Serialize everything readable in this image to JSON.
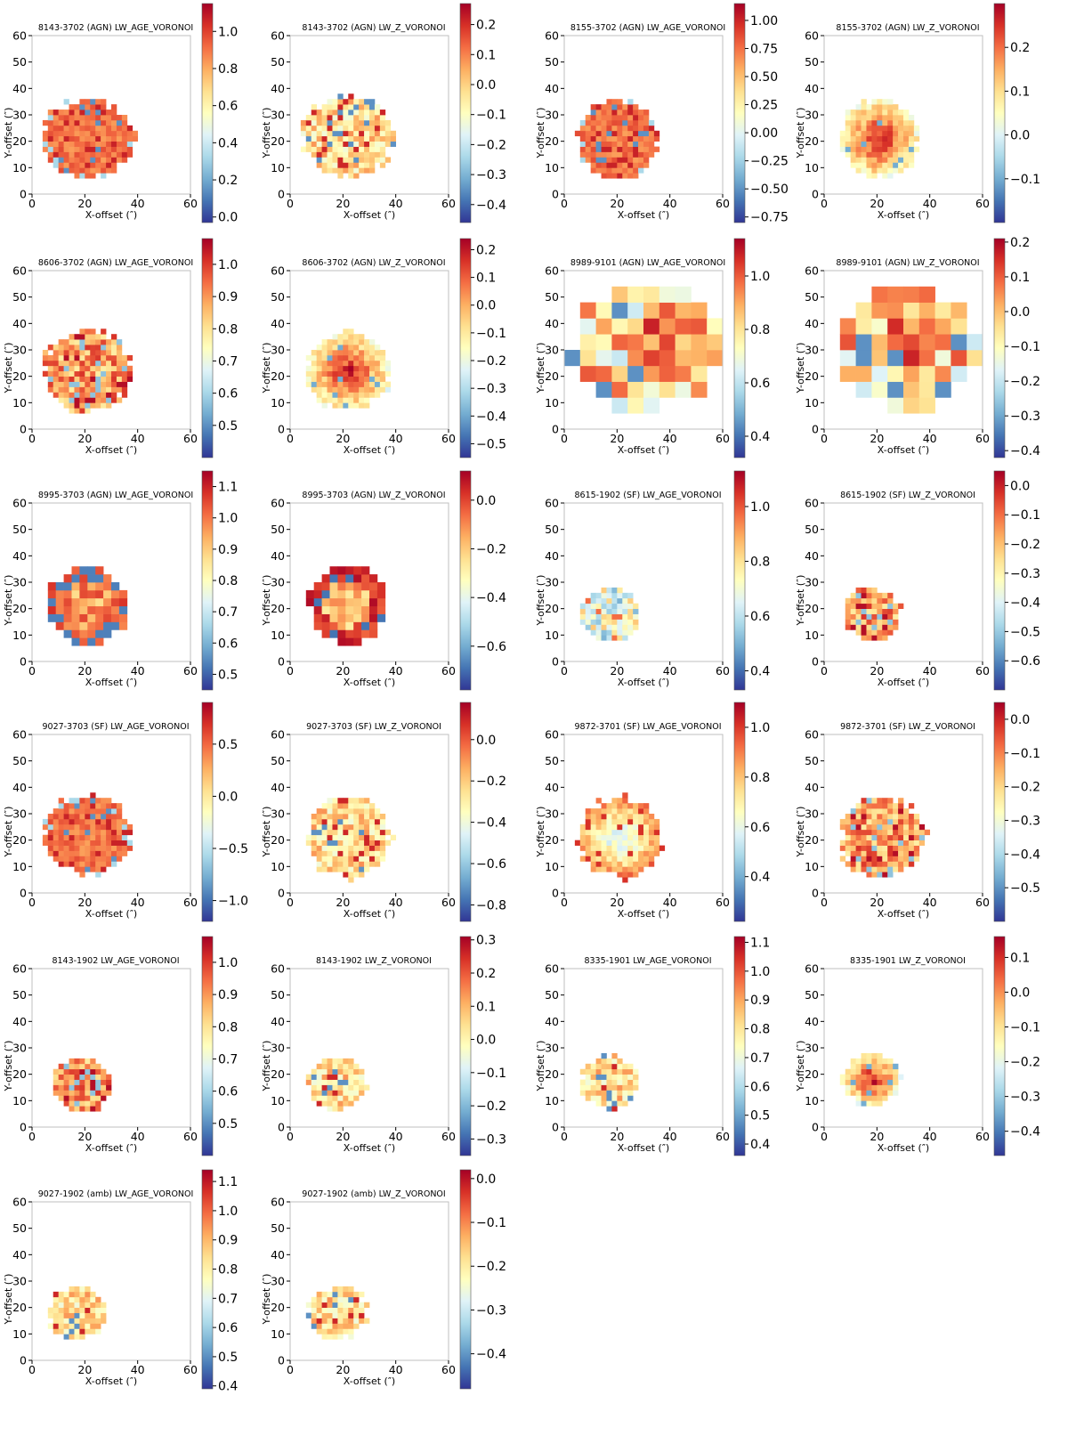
{
  "figure": {
    "colormap": [
      "#313695",
      "#4575b4",
      "#74add1",
      "#abd9e9",
      "#e0f3f8",
      "#ffffbf",
      "#fee090",
      "#fdae61",
      "#f46d43",
      "#d73027",
      "#a50026"
    ],
    "shared_axes": {
      "xlabel": "X-offset (″)",
      "ylabel": "Y-offset (″)",
      "xticks": [
        0,
        20,
        40,
        60
      ],
      "yticks": [
        0,
        10,
        20,
        30,
        40,
        50,
        60
      ],
      "xlim": [
        0,
        60
      ],
      "ylim": [
        0,
        60
      ]
    }
  },
  "chart_data": [
    {
      "type": "heatmap",
      "title": "8143-3702 (AGN) LW_AGE_VORONOI",
      "map": {
        "cx": 21,
        "cy": 21,
        "rx": 17,
        "ry": 15,
        "cell": 2,
        "rough": 0.55,
        "pattern": "agn-high"
      },
      "colorbar": {
        "vmin": -0.03,
        "vmax": 1.15,
        "ticks": [
          "0.0",
          "0.2",
          "0.4",
          "0.6",
          "0.8",
          "1.0"
        ]
      }
    },
    {
      "type": "heatmap",
      "title": "8143-3702 (AGN) LW_Z_VORONOI",
      "map": {
        "cx": 22,
        "cy": 22,
        "rx": 17,
        "ry": 15,
        "cell": 2,
        "rough": 0.45,
        "pattern": "speckle-mid"
      },
      "colorbar": {
        "vmin": -0.46,
        "vmax": 0.27,
        "ticks": [
          "0.2",
          "0.1",
          "0.0",
          "−0.1",
          "−0.2",
          "−0.3",
          "−0.4"
        ]
      }
    },
    {
      "type": "heatmap",
      "title": "8155-3702 (AGN) LW_AGE_VORONOI",
      "map": {
        "cx": 20,
        "cy": 21,
        "rx": 15,
        "ry": 15,
        "cell": 2,
        "rough": 0.45,
        "pattern": "agn-high"
      },
      "colorbar": {
        "vmin": -0.8,
        "vmax": 1.15,
        "ticks": [
          "1.00",
          "0.75",
          "0.50",
          "0.25",
          "0.00",
          "−0.25",
          "−0.50",
          "−0.75"
        ]
      }
    },
    {
      "type": "heatmap",
      "title": "8155-3702 (AGN) LW_Z_VORONOI",
      "map": {
        "cx": 21,
        "cy": 21,
        "rx": 15,
        "ry": 15,
        "cell": 2,
        "rough": 0.45,
        "pattern": "center-hot"
      },
      "colorbar": {
        "vmin": -0.2,
        "vmax": 0.3,
        "ticks": [
          "0.2",
          "0.1",
          "0.0",
          "−0.1"
        ]
      }
    },
    {
      "type": "heatmap",
      "title": "8606-3702 (AGN) LW_AGE_VORONOI",
      "map": {
        "cx": 21,
        "cy": 22,
        "rx": 17,
        "ry": 15,
        "cell": 2,
        "rough": 0.55,
        "pattern": "speckle-high"
      },
      "colorbar": {
        "vmin": 0.4,
        "vmax": 1.08,
        "ticks": [
          "1.0",
          "0.9",
          "0.8",
          "0.7",
          "0.6",
          "0.5"
        ]
      }
    },
    {
      "type": "heatmap",
      "title": "8606-3702 (AGN) LW_Z_VORONOI",
      "map": {
        "cx": 22,
        "cy": 22,
        "rx": 16,
        "ry": 15,
        "cell": 2,
        "rough": 0.45,
        "pattern": "center-hot"
      },
      "colorbar": {
        "vmin": -0.55,
        "vmax": 0.24,
        "ticks": [
          "0.2",
          "0.1",
          "0.0",
          "−0.1",
          "−0.2",
          "−0.3",
          "−0.4",
          "−0.5"
        ]
      }
    },
    {
      "type": "heatmap",
      "title": "8989-9101 (AGN) LW_AGE_VORONOI",
      "map": {
        "cx": 31,
        "cy": 31,
        "rx": 27,
        "ry": 24,
        "cell": 6,
        "rough": 0.3,
        "pattern": "voronoi-big"
      },
      "colorbar": {
        "vmin": 0.32,
        "vmax": 1.14,
        "ticks": [
          "1.0",
          "0.8",
          "0.6",
          "0.4"
        ]
      }
    },
    {
      "type": "heatmap",
      "title": "8989-9101 (AGN) LW_Z_VORONOI",
      "map": {
        "cx": 31,
        "cy": 31,
        "rx": 27,
        "ry": 24,
        "cell": 6,
        "rough": 0.3,
        "pattern": "voronoi-big"
      },
      "colorbar": {
        "vmin": -0.42,
        "vmax": 0.21,
        "ticks": [
          "0.2",
          "0.1",
          "0.0",
          "−0.1",
          "−0.2",
          "−0.3",
          "−0.4"
        ]
      }
    },
    {
      "type": "heatmap",
      "title": "8995-3703 (AGN) LW_AGE_VORONOI",
      "map": {
        "cx": 21,
        "cy": 21,
        "rx": 15,
        "ry": 15,
        "cell": 3,
        "rough": 0.25,
        "pattern": "ring-blue"
      },
      "colorbar": {
        "vmin": 0.45,
        "vmax": 1.15,
        "ticks": [
          "1.1",
          "1.0",
          "0.9",
          "0.8",
          "0.7",
          "0.6",
          "0.5"
        ]
      }
    },
    {
      "type": "heatmap",
      "title": "8995-3703 (AGN) LW_Z_VORONOI",
      "map": {
        "cx": 22,
        "cy": 22,
        "rx": 15,
        "ry": 15,
        "cell": 3,
        "rough": 0.25,
        "pattern": "ring-red"
      },
      "colorbar": {
        "vmin": -0.78,
        "vmax": 0.12,
        "ticks": [
          "0.0",
          "−0.2",
          "−0.4",
          "−0.6"
        ]
      }
    },
    {
      "type": "heatmap",
      "title": "8615-1902 (SF) LW_AGE_VORONOI",
      "map": {
        "cx": 17,
        "cy": 18,
        "rx": 11,
        "ry": 10,
        "cell": 2,
        "rough": 0.5,
        "pattern": "speckle-low"
      },
      "colorbar": {
        "vmin": 0.33,
        "vmax": 1.13,
        "ticks": [
          "1.0",
          "0.8",
          "0.6",
          "0.4"
        ]
      }
    },
    {
      "type": "heatmap",
      "title": "8615-1902 (SF) LW_Z_VORONOI",
      "map": {
        "cx": 18,
        "cy": 18,
        "rx": 11,
        "ry": 10,
        "cell": 2,
        "rough": 0.5,
        "pattern": "speckle-high"
      },
      "colorbar": {
        "vmin": -0.7,
        "vmax": 0.05,
        "ticks": [
          "0.0",
          "−0.1",
          "−0.2",
          "−0.3",
          "−0.4",
          "−0.5",
          "−0.6"
        ]
      }
    },
    {
      "type": "heatmap",
      "title": "9027-3703 (SF) LW_AGE_VORONOI",
      "map": {
        "cx": 21,
        "cy": 22,
        "rx": 16,
        "ry": 15,
        "cell": 2,
        "rough": 0.5,
        "pattern": "agn-high"
      },
      "colorbar": {
        "vmin": -1.2,
        "vmax": 0.9,
        "ticks": [
          "0.5",
          "0.0",
          "−0.5",
          "−1.0"
        ]
      }
    },
    {
      "type": "heatmap",
      "title": "9027-3703 (SF) LW_Z_VORONOI",
      "map": {
        "cx": 22,
        "cy": 21,
        "rx": 16,
        "ry": 15,
        "cell": 2,
        "rough": 0.5,
        "pattern": "speckle-mid"
      },
      "colorbar": {
        "vmin": -0.88,
        "vmax": 0.18,
        "ticks": [
          "0.0",
          "−0.2",
          "−0.4",
          "−0.6",
          "−0.8"
        ]
      }
    },
    {
      "type": "heatmap",
      "title": "9872-3701 (SF) LW_AGE_VORONOI",
      "map": {
        "cx": 21,
        "cy": 21,
        "rx": 16,
        "ry": 15,
        "cell": 2,
        "rough": 0.5,
        "pattern": "center-cool"
      },
      "colorbar": {
        "vmin": 0.22,
        "vmax": 1.1,
        "ticks": [
          "1.0",
          "0.8",
          "0.6",
          "0.4"
        ]
      }
    },
    {
      "type": "heatmap",
      "title": "9872-3701 (SF) LW_Z_VORONOI",
      "map": {
        "cx": 22,
        "cy": 21,
        "rx": 16,
        "ry": 15,
        "cell": 2,
        "rough": 0.5,
        "pattern": "speckle-high"
      },
      "colorbar": {
        "vmin": -0.6,
        "vmax": 0.05,
        "ticks": [
          "0.0",
          "−0.1",
          "−0.2",
          "−0.3",
          "−0.4",
          "−0.5"
        ]
      }
    },
    {
      "type": "heatmap",
      "title": "8143-1902 LW_AGE_VORONOI",
      "map": {
        "cx": 19,
        "cy": 16,
        "rx": 11,
        "ry": 10,
        "cell": 2,
        "rough": 0.5,
        "pattern": "speckle-high"
      },
      "colorbar": {
        "vmin": 0.4,
        "vmax": 1.08,
        "ticks": [
          "1.0",
          "0.9",
          "0.8",
          "0.7",
          "0.6",
          "0.5"
        ]
      }
    },
    {
      "type": "heatmap",
      "title": "8143-1902 LW_Z_VORONOI",
      "map": {
        "cx": 18,
        "cy": 17,
        "rx": 11,
        "ry": 10,
        "cell": 2,
        "rough": 0.5,
        "pattern": "speckle-mid"
      },
      "colorbar": {
        "vmin": -0.35,
        "vmax": 0.31,
        "ticks": [
          "0.3",
          "0.2",
          "0.1",
          "0.0",
          "−0.1",
          "−0.2",
          "−0.3"
        ]
      }
    },
    {
      "type": "heatmap",
      "title": "8335-1901 LW_AGE_VORONOI",
      "map": {
        "cx": 17,
        "cy": 17,
        "rx": 11,
        "ry": 10,
        "cell": 2,
        "rough": 0.5,
        "pattern": "speckle-mid"
      },
      "colorbar": {
        "vmin": 0.36,
        "vmax": 1.12,
        "ticks": [
          "1.1",
          "1.0",
          "0.9",
          "0.8",
          "0.7",
          "0.6",
          "0.5",
          "0.4"
        ]
      }
    },
    {
      "type": "heatmap",
      "title": "8335-1901 LW_Z_VORONOI",
      "map": {
        "cx": 18,
        "cy": 18,
        "rx": 11,
        "ry": 10,
        "cell": 2,
        "rough": 0.5,
        "pattern": "center-hot"
      },
      "colorbar": {
        "vmin": -0.47,
        "vmax": 0.16,
        "ticks": [
          "0.1",
          "0.0",
          "−0.1",
          "−0.2",
          "−0.3",
          "−0.4"
        ]
      }
    },
    {
      "type": "heatmap",
      "title": "9027-1902 (amb) LW_AGE_VORONOI",
      "map": {
        "cx": 17,
        "cy": 18,
        "rx": 11,
        "ry": 10,
        "cell": 2,
        "rough": 0.5,
        "pattern": "speckle-mid"
      },
      "colorbar": {
        "vmin": 0.39,
        "vmax": 1.14,
        "ticks": [
          "1.1",
          "1.0",
          "0.9",
          "0.8",
          "0.7",
          "0.6",
          "0.5",
          "0.4"
        ]
      }
    },
    {
      "type": "heatmap",
      "title": "9027-1902 (amb) LW_Z_VORONOI",
      "map": {
        "cx": 18,
        "cy": 18,
        "rx": 11,
        "ry": 10,
        "cell": 2,
        "rough": 0.5,
        "pattern": "speckle-mid"
      },
      "colorbar": {
        "vmin": -0.48,
        "vmax": 0.02,
        "ticks": [
          "0.0",
          "−0.1",
          "−0.2",
          "−0.3",
          "−0.4"
        ]
      }
    }
  ]
}
